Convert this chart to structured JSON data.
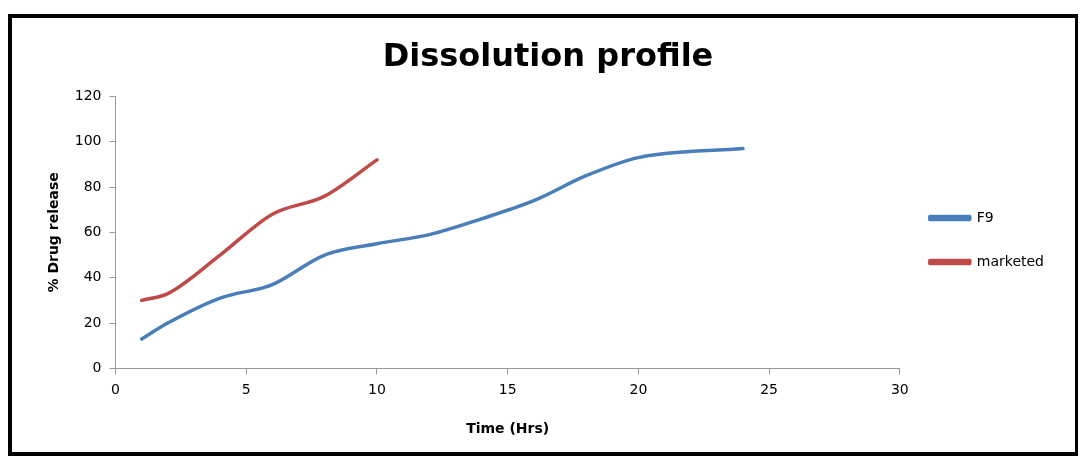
{
  "chart_data": {
    "type": "line",
    "title": "Dissolution profile",
    "xlabel": "Time (Hrs)",
    "ylabel": "% Drug release",
    "xlim": [
      0,
      30
    ],
    "xticks": [
      0,
      5,
      10,
      15,
      20,
      25,
      30
    ],
    "ylim": [
      0,
      120
    ],
    "yticks": [
      0,
      20,
      40,
      60,
      80,
      100,
      120
    ],
    "grid": false,
    "legend": "right",
    "marker": "none",
    "line_style": "solid",
    "series": [
      {
        "name": "F9",
        "color": "#4a7ebb",
        "x": [
          1,
          2,
          4,
          6,
          8,
          10,
          12,
          14,
          16,
          18,
          20,
          24
        ],
        "values": [
          13,
          20,
          31,
          37,
          50,
          55,
          59,
          66,
          74,
          85,
          93,
          97
        ]
      },
      {
        "name": "marketed",
        "color": "#be4b48",
        "x": [
          1,
          2,
          4,
          6,
          8,
          10
        ],
        "values": [
          30,
          33,
          50,
          68,
          76,
          92
        ]
      }
    ]
  }
}
